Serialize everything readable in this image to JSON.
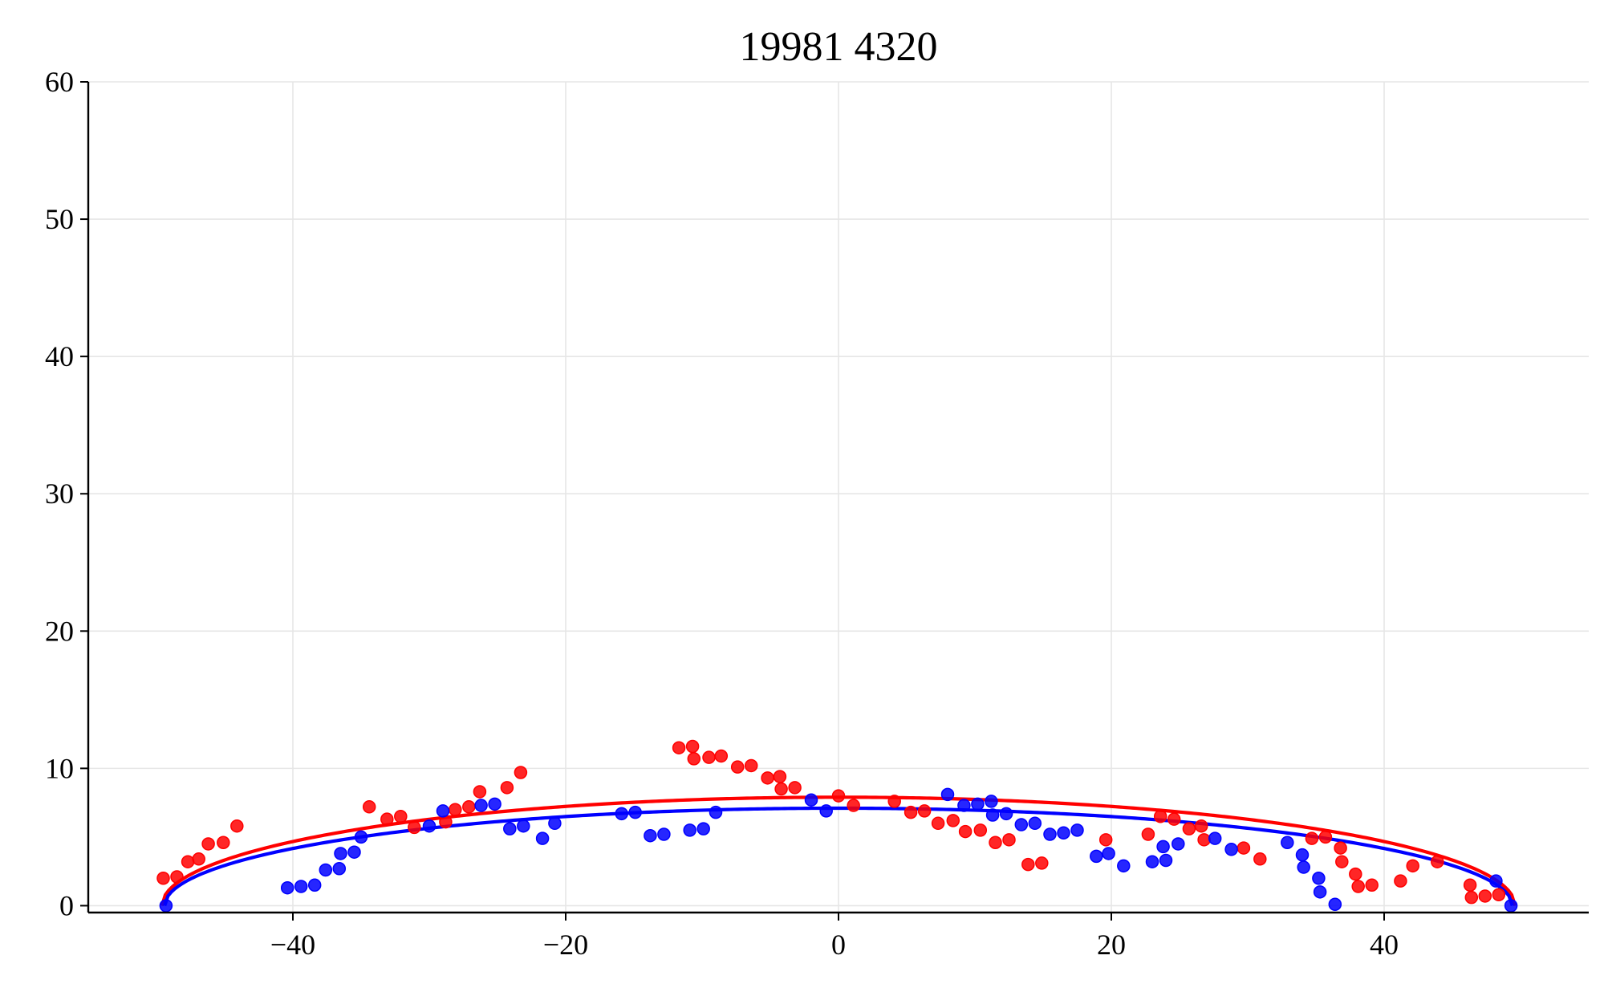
{
  "chart_data": {
    "type": "scatter",
    "title": "19981 4320",
    "xlabel": "",
    "ylabel": "",
    "xlim": [
      -55,
      55
    ],
    "ylim": [
      -0.5,
      60
    ],
    "xticks": [
      -40,
      -20,
      0,
      20,
      40
    ],
    "yticks": [
      0,
      10,
      20,
      30,
      40,
      50,
      60
    ],
    "xtick_labels": [
      "−40",
      "−20",
      "0",
      "20",
      "40"
    ],
    "ytick_labels": [
      "0",
      "10",
      "20",
      "30",
      "40",
      "50",
      "60"
    ],
    "grid": true,
    "legend": "none",
    "colors": {
      "red": "#ff0000",
      "blue": "#0000ff"
    },
    "series": [
      {
        "color": "#ff0000",
        "marker": "point",
        "points": [
          [
            -49.5,
            2.0
          ],
          [
            -48.5,
            2.1
          ],
          [
            -47.7,
            3.2
          ],
          [
            -46.9,
            3.4
          ],
          [
            -46.2,
            4.5
          ],
          [
            -45.1,
            4.6
          ],
          [
            -44.1,
            5.8
          ],
          [
            -34.4,
            7.2
          ],
          [
            -33.1,
            6.3
          ],
          [
            -32.1,
            6.5
          ],
          [
            -31.1,
            5.7
          ],
          [
            -28.8,
            6.1
          ],
          [
            -28.1,
            7.0
          ],
          [
            -27.1,
            7.2
          ],
          [
            -26.3,
            8.3
          ],
          [
            -24.3,
            8.6
          ],
          [
            -23.3,
            9.7
          ],
          [
            -11.7,
            11.5
          ],
          [
            -10.7,
            11.6
          ],
          [
            -10.6,
            10.7
          ],
          [
            -9.5,
            10.8
          ],
          [
            -8.6,
            10.9
          ],
          [
            -7.4,
            10.1
          ],
          [
            -6.4,
            10.2
          ],
          [
            -5.2,
            9.3
          ],
          [
            -4.3,
            9.4
          ],
          [
            -4.2,
            8.5
          ],
          [
            -3.2,
            8.6
          ],
          [
            0.0,
            8.0
          ],
          [
            1.1,
            7.3
          ],
          [
            4.1,
            7.6
          ],
          [
            5.3,
            6.8
          ],
          [
            6.3,
            6.9
          ],
          [
            7.3,
            6.0
          ],
          [
            8.4,
            6.2
          ],
          [
            9.3,
            5.4
          ],
          [
            10.4,
            5.5
          ],
          [
            11.5,
            4.6
          ],
          [
            12.5,
            4.8
          ],
          [
            13.9,
            3.0
          ],
          [
            14.9,
            3.1
          ],
          [
            19.6,
            4.8
          ],
          [
            22.7,
            5.2
          ],
          [
            23.6,
            6.5
          ],
          [
            24.6,
            6.3
          ],
          [
            25.7,
            5.6
          ],
          [
            26.6,
            5.8
          ],
          [
            26.8,
            4.8
          ],
          [
            29.7,
            4.2
          ],
          [
            30.9,
            3.4
          ],
          [
            34.7,
            4.9
          ],
          [
            35.7,
            5.0
          ],
          [
            36.8,
            4.2
          ],
          [
            36.9,
            3.2
          ],
          [
            37.9,
            2.3
          ],
          [
            38.1,
            1.4
          ],
          [
            39.1,
            1.5
          ],
          [
            41.2,
            1.8
          ],
          [
            42.1,
            2.9
          ],
          [
            43.9,
            3.2
          ],
          [
            46.3,
            1.5
          ],
          [
            46.4,
            0.6
          ],
          [
            47.4,
            0.7
          ],
          [
            48.4,
            0.8
          ]
        ]
      },
      {
        "color": "#0000ff",
        "marker": "point",
        "points": [
          [
            -49.3,
            0.0
          ],
          [
            -40.4,
            1.3
          ],
          [
            -39.4,
            1.4
          ],
          [
            -38.4,
            1.5
          ],
          [
            -37.6,
            2.6
          ],
          [
            -36.6,
            2.7
          ],
          [
            -36.5,
            3.8
          ],
          [
            -35.5,
            3.9
          ],
          [
            -35.0,
            5.0
          ],
          [
            -30.0,
            5.8
          ],
          [
            -29.0,
            6.9
          ],
          [
            -26.2,
            7.3
          ],
          [
            -25.2,
            7.4
          ],
          [
            -24.1,
            5.6
          ],
          [
            -23.1,
            5.8
          ],
          [
            -21.7,
            4.9
          ],
          [
            -20.8,
            6.0
          ],
          [
            -15.9,
            6.7
          ],
          [
            -14.9,
            6.8
          ],
          [
            -13.8,
            5.1
          ],
          [
            -12.8,
            5.2
          ],
          [
            -10.9,
            5.5
          ],
          [
            -9.9,
            5.6
          ],
          [
            -9.0,
            6.8
          ],
          [
            -2.0,
            7.7
          ],
          [
            -0.9,
            6.9
          ],
          [
            8.0,
            8.1
          ],
          [
            9.2,
            7.3
          ],
          [
            10.2,
            7.4
          ],
          [
            11.2,
            7.6
          ],
          [
            11.3,
            6.6
          ],
          [
            12.3,
            6.7
          ],
          [
            13.4,
            5.9
          ],
          [
            14.4,
            6.0
          ],
          [
            15.5,
            5.2
          ],
          [
            16.5,
            5.3
          ],
          [
            17.5,
            5.5
          ],
          [
            18.9,
            3.6
          ],
          [
            19.8,
            3.8
          ],
          [
            20.9,
            2.9
          ],
          [
            23.0,
            3.2
          ],
          [
            24.0,
            3.3
          ],
          [
            23.8,
            4.3
          ],
          [
            24.9,
            4.5
          ],
          [
            27.6,
            4.9
          ],
          [
            28.8,
            4.1
          ],
          [
            32.9,
            4.6
          ],
          [
            34.0,
            3.7
          ],
          [
            34.1,
            2.8
          ],
          [
            35.2,
            2.0
          ],
          [
            35.3,
            1.0
          ],
          [
            36.4,
            0.1
          ],
          [
            48.2,
            1.8
          ],
          [
            49.3,
            0.0
          ]
        ]
      }
    ],
    "fit_curves": [
      {
        "color": "#ff0000",
        "shape": "half-ellipse",
        "center_x": 0.0,
        "semi_axis_x": 49.6,
        "peak_y": 7.9
      },
      {
        "color": "#0000ff",
        "shape": "half-ellipse",
        "center_x": 0.0,
        "semi_axis_x": 49.4,
        "peak_y": 7.1
      }
    ]
  }
}
